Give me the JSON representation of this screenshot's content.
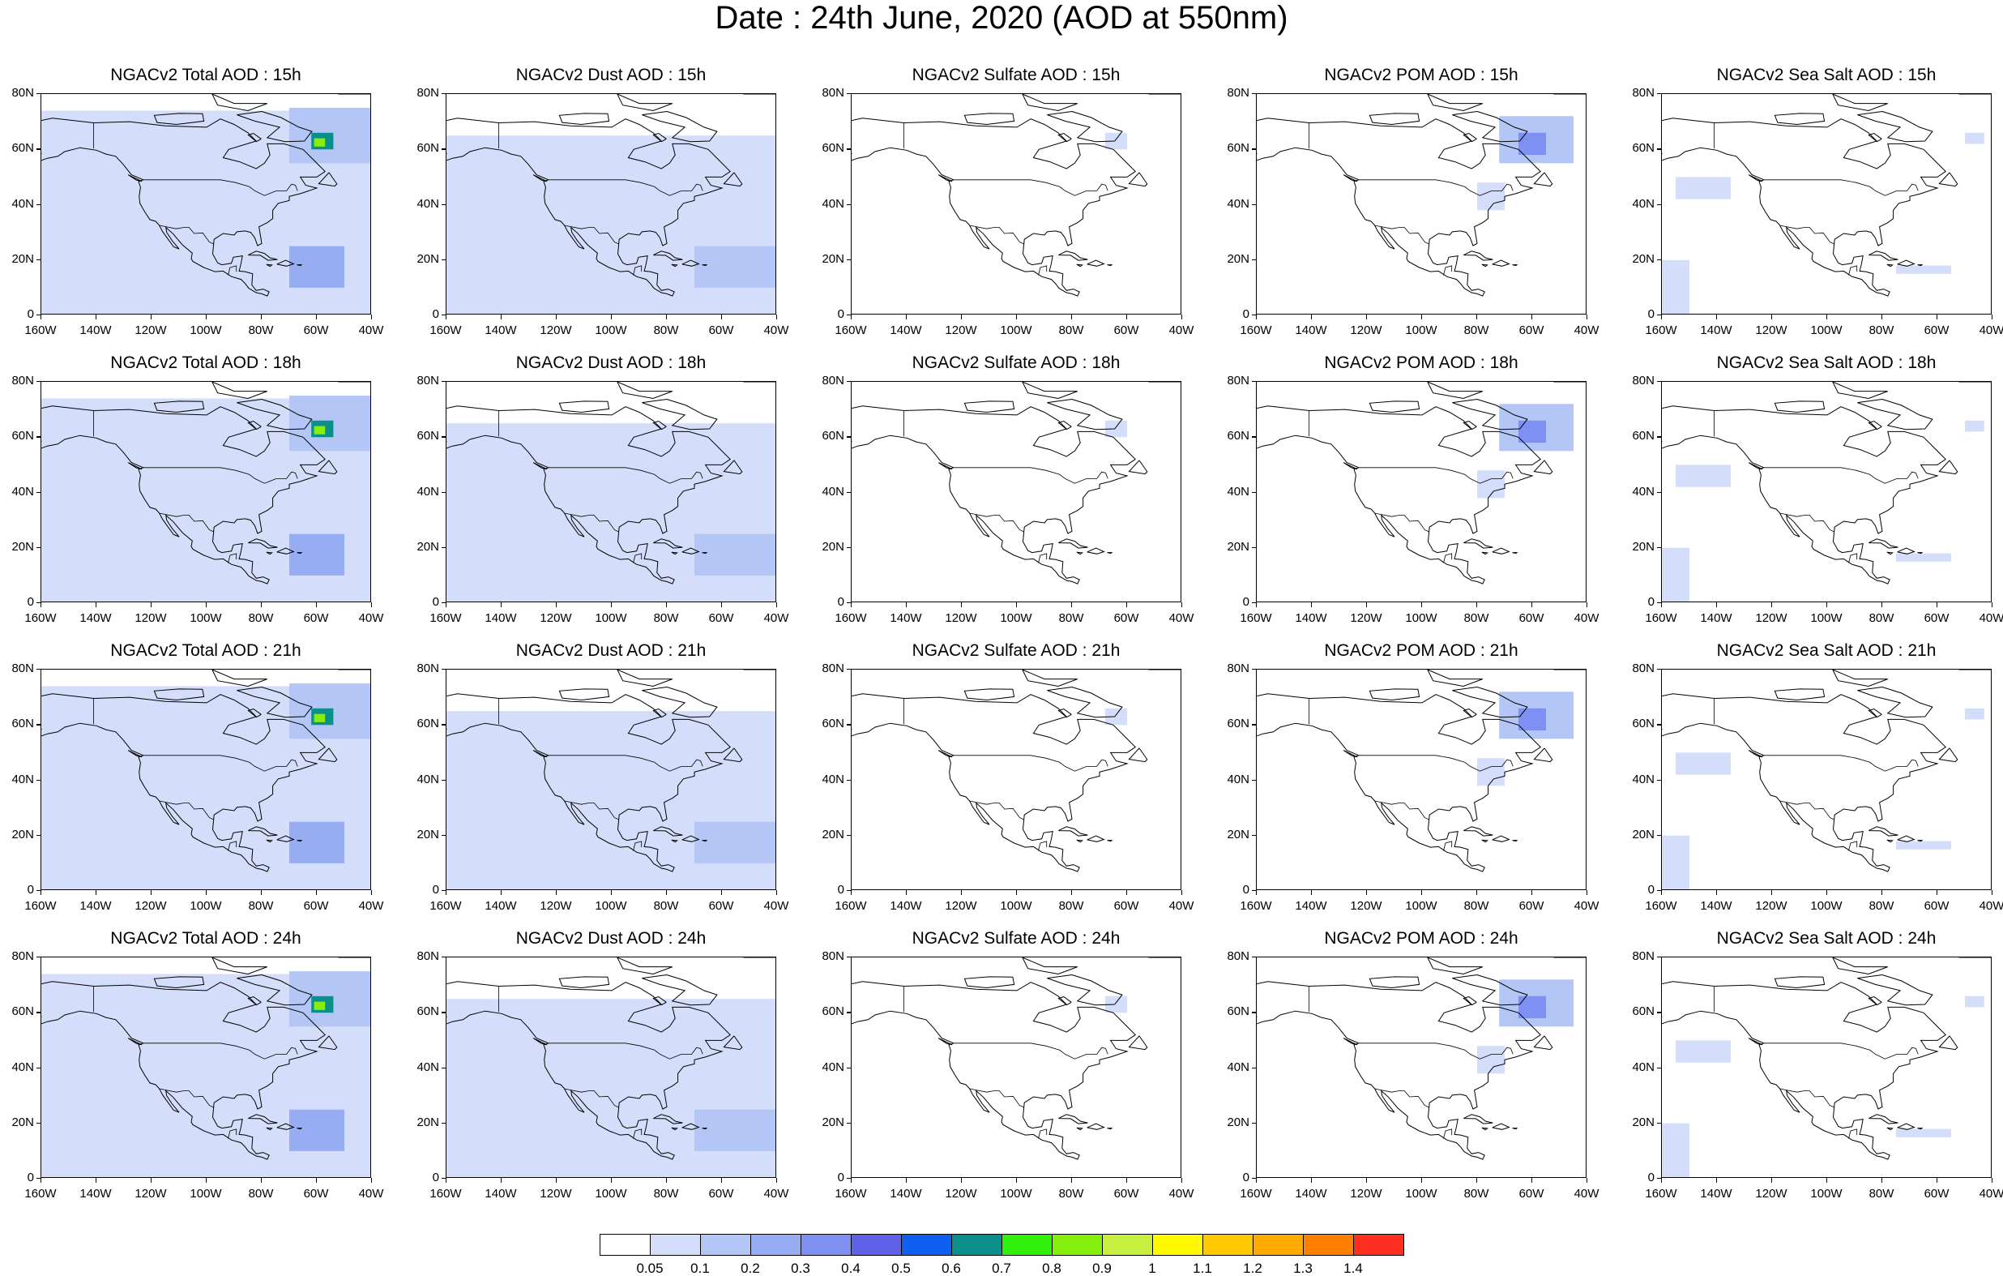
{
  "title": "Date : 24th June, 2020 (AOD at 550nm)",
  "lat_labels": [
    "80N",
    "60N",
    "40N",
    "20N",
    "0"
  ],
  "lon_labels": [
    "160W",
    "140W",
    "120W",
    "100W",
    "80W",
    "60W",
    "40W"
  ],
  "panels": [
    {
      "title": "NGACv2 Total AOD : 15h",
      "product": "total",
      "hour": "15h"
    },
    {
      "title": "NGACv2 Dust AOD : 15h",
      "product": "dust",
      "hour": "15h"
    },
    {
      "title": "NGACv2 Sulfate AOD : 15h",
      "product": "sulfate",
      "hour": "15h"
    },
    {
      "title": "NGACv2 POM AOD : 15h",
      "product": "pom",
      "hour": "15h"
    },
    {
      "title": "NGACv2 Sea Salt AOD : 15h",
      "product": "seasalt",
      "hour": "15h"
    },
    {
      "title": "NGACv2 Total AOD : 18h",
      "product": "total",
      "hour": "18h"
    },
    {
      "title": "NGACv2 Dust AOD : 18h",
      "product": "dust",
      "hour": "18h"
    },
    {
      "title": "NGACv2 Sulfate AOD : 18h",
      "product": "sulfate",
      "hour": "18h"
    },
    {
      "title": "NGACv2 POM AOD : 18h",
      "product": "pom",
      "hour": "18h"
    },
    {
      "title": "NGACv2 Sea Salt AOD : 18h",
      "product": "seasalt",
      "hour": "18h"
    },
    {
      "title": "NGACv2 Total AOD : 21h",
      "product": "total",
      "hour": "21h"
    },
    {
      "title": "NGACv2 Dust AOD : 21h",
      "product": "dust",
      "hour": "21h"
    },
    {
      "title": "NGACv2 Sulfate AOD : 21h",
      "product": "sulfate",
      "hour": "21h"
    },
    {
      "title": "NGACv2 POM AOD : 21h",
      "product": "pom",
      "hour": "21h"
    },
    {
      "title": "NGACv2 Sea Salt AOD : 21h",
      "product": "seasalt",
      "hour": "21h"
    },
    {
      "title": "NGACv2 Total AOD : 24h",
      "product": "total",
      "hour": "24h"
    },
    {
      "title": "NGACv2 Dust AOD : 24h",
      "product": "dust",
      "hour": "24h"
    },
    {
      "title": "NGACv2 Sulfate AOD : 24h",
      "product": "sulfate",
      "hour": "24h"
    },
    {
      "title": "NGACv2 POM AOD : 24h",
      "product": "pom",
      "hour": "24h"
    },
    {
      "title": "NGACv2 Sea Salt  AOD : 24h",
      "product": "seasalt",
      "hour": "24h"
    }
  ],
  "colorbar": {
    "labels": [
      "0.05",
      "0.1",
      "0.2",
      "0.3",
      "0.4",
      "0.5",
      "0.6",
      "0.7",
      "0.8",
      "0.9",
      "1",
      "1.1",
      "1.2",
      "1.3",
      "1.4"
    ],
    "colors": [
      "#ffffff",
      "#d4defa",
      "#b4c6f6",
      "#96adf4",
      "#7e91f2",
      "#5f61e9",
      "#0f5ff0",
      "#0b8f8a",
      "#31f00b",
      "#85ee0d",
      "#c7ef3f",
      "#fffa00",
      "#ffc800",
      "#ffaa00",
      "#ff7f00",
      "#ff2f1f"
    ]
  },
  "map_extent": {
    "lon": [
      -160,
      -40
    ],
    "lat": [
      0,
      80
    ]
  },
  "aod_bins": [
    0.05,
    0.1,
    0.2,
    0.3,
    0.4,
    0.5,
    0.6,
    0.7,
    0.8,
    0.9,
    1.0,
    1.1,
    1.2,
    1.3,
    1.4
  ],
  "aod_fields": {
    "total": [
      {
        "lon": [
          -160,
          -40
        ],
        "lat": [
          0,
          74
        ],
        "aod": 0.07
      },
      {
        "lon": [
          -70,
          -40
        ],
        "lat": [
          55,
          75
        ],
        "aod": 0.15
      },
      {
        "lon": [
          -70,
          -50
        ],
        "lat": [
          10,
          25
        ],
        "aod": 0.25
      },
      {
        "lon": [
          -62,
          -54
        ],
        "lat": [
          60,
          66
        ],
        "aod": 0.6
      },
      {
        "lon": [
          -61,
          -57
        ],
        "lat": [
          61,
          64
        ],
        "aod": 0.8
      }
    ],
    "dust": [
      {
        "lon": [
          -160,
          -40
        ],
        "lat": [
          0,
          65
        ],
        "aod": 0.07
      },
      {
        "lon": [
          -70,
          -40
        ],
        "lat": [
          10,
          25
        ],
        "aod": 0.15
      }
    ],
    "sulfate": [
      {
        "lon": [
          -68,
          -60
        ],
        "lat": [
          60,
          66
        ],
        "aod": 0.07
      }
    ],
    "pom": [
      {
        "lon": [
          -72,
          -45
        ],
        "lat": [
          55,
          72
        ],
        "aod": 0.15
      },
      {
        "lon": [
          -65,
          -55
        ],
        "lat": [
          58,
          66
        ],
        "aod": 0.35
      },
      {
        "lon": [
          -80,
          -70
        ],
        "lat": [
          38,
          48
        ],
        "aod": 0.07
      }
    ],
    "seasalt": [
      {
        "lon": [
          -155,
          -135
        ],
        "lat": [
          42,
          50
        ],
        "aod": 0.07
      },
      {
        "lon": [
          -160,
          -150
        ],
        "lat": [
          0,
          20
        ],
        "aod": 0.07
      },
      {
        "lon": [
          -75,
          -55
        ],
        "lat": [
          15,
          18
        ],
        "aod": 0.07
      },
      {
        "lon": [
          -50,
          -43
        ],
        "lat": [
          62,
          66
        ],
        "aod": 0.07
      }
    ]
  }
}
